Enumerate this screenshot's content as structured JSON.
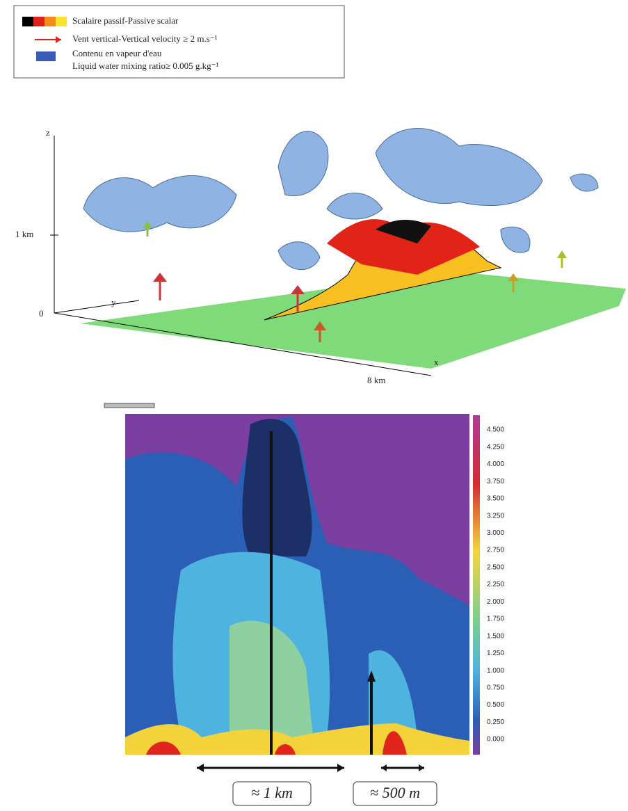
{
  "legend": {
    "items": [
      "Scalaire passif-Passive scalar",
      "Vent vertical-Vertical velocity ≥ 2 m.s⁻¹",
      "Contenu en vapeur d'eau",
      "Liquid water mixing ratio≥ 0.005 g.kg⁻¹"
    ]
  },
  "panel3d": {
    "axis_z": "z",
    "z_mark": "1 km",
    "origin": "0",
    "axis_y": "y",
    "axis_x": "x",
    "x_mark": "8 km"
  },
  "panel2d": {
    "colorbar": {
      "ticks": [
        "4.500",
        "4.250",
        "4.000",
        "3.750",
        "3.500",
        "3.250",
        "3.000",
        "2.750",
        "2.500",
        "2.250",
        "2.000",
        "1.750",
        "1.500",
        "1.250",
        "1.000",
        "0.750",
        "0.500",
        "0.250",
        "0.000"
      ]
    }
  },
  "annotations": {
    "left_scale": "≈ 1 km",
    "right_scale": "≈ 500 m"
  }
}
